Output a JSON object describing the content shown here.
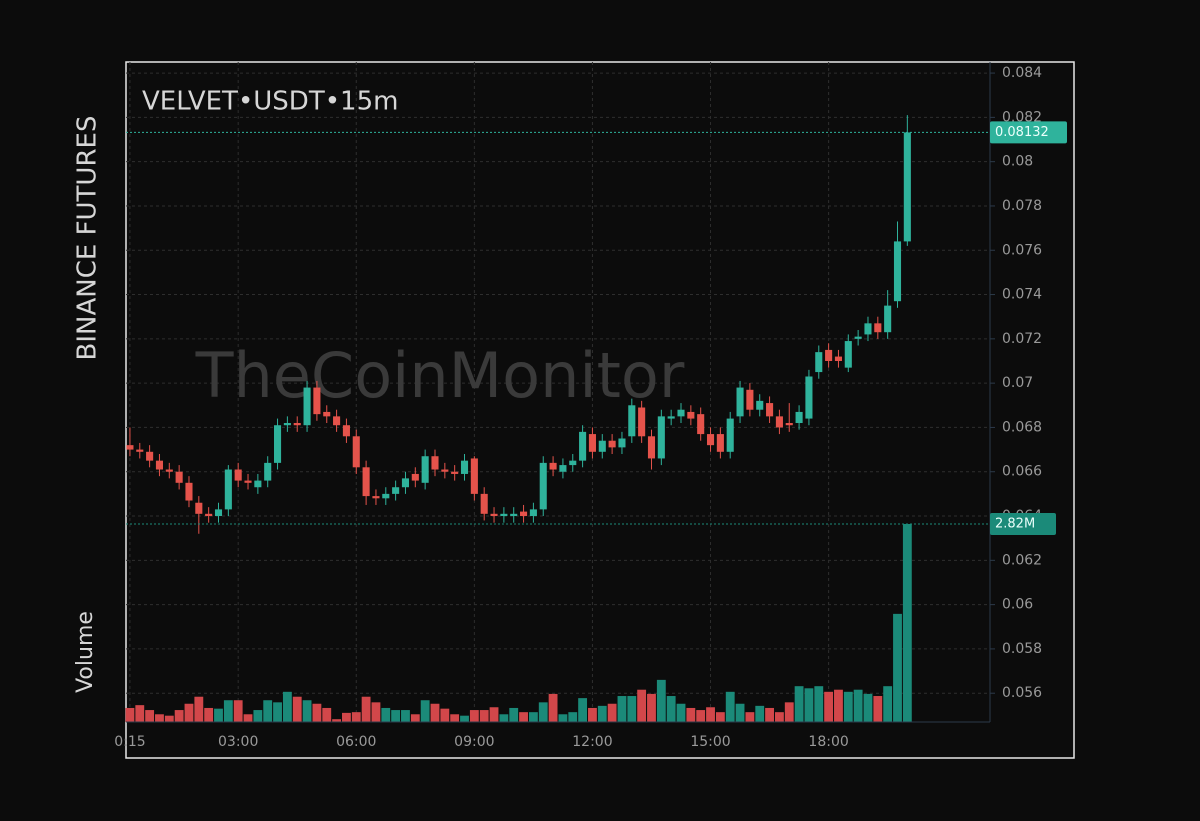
{
  "chart_data": {
    "type": "candlestick",
    "title": "VELVET•USDT•15m",
    "subtitle": "BINANCE FUTURES",
    "volume_title": "Volume",
    "watermark": "TheCoinMonitor",
    "up_color": "#2fb39c",
    "down_color": "#e5534b",
    "volume_up_color": "#1b8a79",
    "volume_down_color": "#d2474a",
    "grid": true,
    "xlim": [
      0.15,
      22.1
    ],
    "xticks": [
      {
        "value": 0.25,
        "label": "0:15"
      },
      {
        "value": 3,
        "label": "03:00"
      },
      {
        "value": 6,
        "label": "06:00"
      },
      {
        "value": 9,
        "label": "09:00"
      },
      {
        "value": 12,
        "label": "12:00"
      },
      {
        "value": 15,
        "label": "15:00"
      },
      {
        "value": 18,
        "label": "18:00"
      }
    ],
    "ylim": [
      0.0547,
      0.0845
    ],
    "yticks": [
      0.056,
      0.058,
      0.06,
      0.062,
      0.064,
      0.066,
      0.068,
      0.07,
      0.072,
      0.074,
      0.076,
      0.078,
      0.08,
      0.082,
      0.084
    ],
    "x": [
      0.25,
      0.5,
      0.75,
      1,
      1.25,
      1.5,
      1.75,
      2,
      2.25,
      2.5,
      2.75,
      3,
      3.25,
      3.5,
      3.75,
      4,
      4.25,
      4.5,
      4.75,
      5,
      5.25,
      5.5,
      5.75,
      6,
      6.25,
      6.5,
      6.75,
      7,
      7.25,
      7.5,
      7.75,
      8,
      8.25,
      8.5,
      8.75,
      9,
      9.25,
      9.5,
      9.75,
      10,
      10.25,
      10.5,
      10.75,
      11,
      11.25,
      11.5,
      11.75,
      12,
      12.25,
      12.5,
      12.75,
      13,
      13.25,
      13.5,
      13.75,
      14,
      14.25,
      14.5,
      14.75,
      15,
      15.25,
      15.5,
      15.75,
      16,
      16.25,
      16.5,
      16.75,
      17,
      17.25,
      17.5,
      17.75,
      18,
      18.25,
      18.5,
      18.75,
      19,
      19.25,
      19.5,
      19.75,
      20
    ],
    "open": [
      0.0672,
      0.067,
      0.0669,
      0.0665,
      0.0661,
      0.066,
      0.0655,
      0.0646,
      0.0641,
      0.064,
      0.0643,
      0.0661,
      0.0656,
      0.0653,
      0.0656,
      0.0664,
      0.0681,
      0.0682,
      0.0681,
      0.0698,
      0.0687,
      0.0685,
      0.0681,
      0.0676,
      0.0662,
      0.0649,
      0.0648,
      0.065,
      0.0653,
      0.0659,
      0.0655,
      0.0667,
      0.0661,
      0.066,
      0.0659,
      0.0666,
      0.065,
      0.0641,
      0.064,
      0.064,
      0.0642,
      0.064,
      0.0643,
      0.0664,
      0.066,
      0.0663,
      0.0665,
      0.0677,
      0.0669,
      0.0674,
      0.0671,
      0.0676,
      0.0689,
      0.0676,
      0.0666,
      0.0684,
      0.0685,
      0.0687,
      0.0686,
      0.0677,
      0.0677,
      0.0669,
      0.0685,
      0.0697,
      0.0688,
      0.0691,
      0.0685,
      0.0682,
      0.0682,
      0.0684,
      0.0705,
      0.0715,
      0.0712,
      0.0707,
      0.072,
      0.0722,
      0.0727,
      0.0723,
      0.0737,
      0.0764
    ],
    "high": [
      0.068,
      0.0673,
      0.0672,
      0.0668,
      0.0664,
      0.0663,
      0.0658,
      0.0649,
      0.0644,
      0.0646,
      0.0663,
      0.0664,
      0.0659,
      0.0659,
      0.0667,
      0.0684,
      0.0685,
      0.0685,
      0.0701,
      0.0701,
      0.069,
      0.0688,
      0.0684,
      0.0679,
      0.0665,
      0.0652,
      0.0653,
      0.0656,
      0.066,
      0.0662,
      0.067,
      0.067,
      0.0664,
      0.0663,
      0.0668,
      0.0667,
      0.0653,
      0.0644,
      0.0644,
      0.0644,
      0.0645,
      0.0646,
      0.0667,
      0.0667,
      0.0666,
      0.0668,
      0.0681,
      0.068,
      0.0677,
      0.0677,
      0.0678,
      0.0693,
      0.0692,
      0.0679,
      0.0688,
      0.0688,
      0.0691,
      0.069,
      0.0689,
      0.068,
      0.068,
      0.0687,
      0.0701,
      0.07,
      0.0695,
      0.0694,
      0.0688,
      0.0691,
      0.069,
      0.0706,
      0.0717,
      0.0718,
      0.0715,
      0.0722,
      0.0724,
      0.073,
      0.073,
      0.0742,
      0.0773,
      0.0821
    ],
    "low": [
      0.0667,
      0.0666,
      0.0662,
      0.0658,
      0.0657,
      0.0652,
      0.0644,
      0.0632,
      0.0637,
      0.0637,
      0.064,
      0.0653,
      0.0652,
      0.065,
      0.0653,
      0.0661,
      0.0678,
      0.0678,
      0.0678,
      0.0683,
      0.0682,
      0.0678,
      0.0673,
      0.0659,
      0.0645,
      0.0645,
      0.0645,
      0.0647,
      0.065,
      0.0653,
      0.0652,
      0.0658,
      0.0657,
      0.0656,
      0.0656,
      0.0647,
      0.0638,
      0.0637,
      0.0637,
      0.0637,
      0.0637,
      0.0637,
      0.064,
      0.0658,
      0.0657,
      0.066,
      0.0662,
      0.0666,
      0.0666,
      0.0668,
      0.0668,
      0.0673,
      0.0673,
      0.0661,
      0.0663,
      0.0681,
      0.0682,
      0.0681,
      0.0674,
      0.0669,
      0.0666,
      0.0666,
      0.0682,
      0.0685,
      0.0685,
      0.0682,
      0.0677,
      0.0678,
      0.0679,
      0.0681,
      0.0702,
      0.0707,
      0.0707,
      0.0705,
      0.0717,
      0.0719,
      0.072,
      0.072,
      0.0734,
      0.0762
    ],
    "close": [
      0.067,
      0.0669,
      0.0665,
      0.0661,
      0.066,
      0.0655,
      0.0647,
      0.0641,
      0.064,
      0.0643,
      0.0661,
      0.0656,
      0.0655,
      0.0656,
      0.0664,
      0.0681,
      0.0682,
      0.0681,
      0.0698,
      0.0686,
      0.0685,
      0.0681,
      0.0676,
      0.0662,
      0.0649,
      0.0648,
      0.065,
      0.0653,
      0.0657,
      0.0656,
      0.0667,
      0.0661,
      0.066,
      0.0659,
      0.0665,
      0.065,
      0.0641,
      0.064,
      0.0641,
      0.0641,
      0.064,
      0.0643,
      0.0664,
      0.0661,
      0.0663,
      0.0665,
      0.0678,
      0.0669,
      0.0674,
      0.0671,
      0.0675,
      0.069,
      0.0676,
      0.0666,
      0.0685,
      0.0685,
      0.0688,
      0.0684,
      0.0677,
      0.0672,
      0.0669,
      0.0684,
      0.0698,
      0.0688,
      0.0692,
      0.0685,
      0.068,
      0.0681,
      0.0687,
      0.0703,
      0.0714,
      0.071,
      0.071,
      0.0719,
      0.0721,
      0.0727,
      0.0723,
      0.0735,
      0.0764,
      0.08132
    ],
    "volume": [
      0.2,
      0.24,
      0.17,
      0.11,
      0.09,
      0.17,
      0.26,
      0.36,
      0.2,
      0.19,
      0.31,
      0.31,
      0.11,
      0.17,
      0.31,
      0.28,
      0.43,
      0.36,
      0.31,
      0.26,
      0.2,
      0.04,
      0.13,
      0.14,
      0.36,
      0.28,
      0.2,
      0.17,
      0.17,
      0.11,
      0.31,
      0.26,
      0.19,
      0.11,
      0.09,
      0.17,
      0.17,
      0.21,
      0.11,
      0.2,
      0.14,
      0.14,
      0.28,
      0.4,
      0.11,
      0.14,
      0.34,
      0.2,
      0.23,
      0.26,
      0.37,
      0.37,
      0.46,
      0.4,
      0.6,
      0.37,
      0.26,
      0.2,
      0.17,
      0.21,
      0.14,
      0.43,
      0.26,
      0.14,
      0.23,
      0.2,
      0.14,
      0.28,
      0.51,
      0.48,
      0.51,
      0.43,
      0.46,
      0.43,
      0.46,
      0.4,
      0.37,
      0.51,
      1.54,
      2.82
    ],
    "volume_value_labels": [
      null,
      null,
      null,
      null,
      null,
      null,
      null,
      null,
      null,
      null,
      null,
      null,
      null,
      null,
      null,
      null,
      null,
      null,
      null,
      null,
      null,
      null,
      null,
      null,
      null,
      null,
      null,
      null,
      null,
      null,
      null,
      null,
      null,
      null,
      null,
      null,
      null,
      null,
      null,
      null,
      null,
      null,
      null,
      null,
      null,
      null,
      null,
      null,
      null,
      null,
      null,
      null,
      null,
      null,
      null,
      null,
      null,
      null,
      null,
      null,
      null,
      null,
      null,
      null,
      null,
      null,
      null,
      null,
      null,
      null,
      null,
      null,
      null,
      null,
      null,
      null,
      null,
      null,
      null,
      "2.82M"
    ]
  }
}
